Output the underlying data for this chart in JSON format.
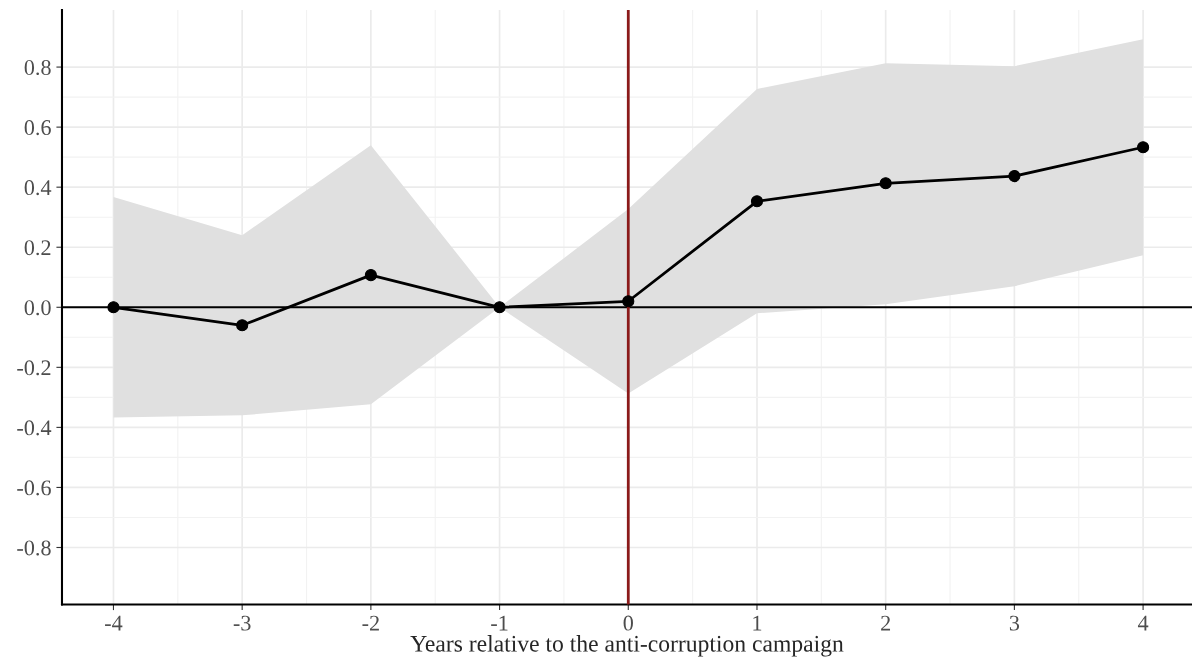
{
  "chart_data": {
    "type": "line",
    "xlabel": "Years relative to the anti-corruption campaign",
    "x": [
      -4,
      -3,
      -2,
      -1,
      0,
      1,
      2,
      3,
      4
    ],
    "series": [
      {
        "color": "#000000",
        "values": [
          0.0,
          -0.06,
          0.107,
          0.0,
          0.02,
          0.353,
          0.413,
          0.437,
          0.533
        ],
        "lower": [
          -0.367,
          -0.36,
          -0.323,
          0.0,
          -0.287,
          -0.02,
          0.01,
          0.07,
          0.173
        ],
        "upper": [
          0.367,
          0.24,
          0.54,
          0.0,
          0.327,
          0.727,
          0.813,
          0.803,
          0.893
        ]
      }
    ],
    "xlim": [
      -4.4,
      4.38
    ],
    "ylim": [
      -0.99,
      0.99
    ],
    "xticks": [
      -4,
      -3,
      -2,
      -1,
      0,
      1,
      2,
      3,
      4
    ],
    "yticks": [
      {
        "value": -0.8,
        "label": "-0.8"
      },
      {
        "value": -0.6,
        "label": "-0.6"
      },
      {
        "value": -0.4,
        "label": "-0.4"
      },
      {
        "value": -0.2,
        "label": "-0.2"
      },
      {
        "value": 0,
        "label": "0.0"
      },
      {
        "value": 0.2,
        "label": "0.2"
      },
      {
        "value": 0.4,
        "label": "0.4"
      },
      {
        "value": 0.6,
        "label": "0.6"
      },
      {
        "value": 0.8,
        "label": "0.8"
      }
    ],
    "ref_lines": [
      {
        "axis": "y",
        "value": 0,
        "color": "#000000"
      },
      {
        "axis": "x",
        "value": 0,
        "color": "#8b1a1a"
      }
    ],
    "grid": true,
    "marker": "circle",
    "line_style": "solid",
    "legend": false
  }
}
